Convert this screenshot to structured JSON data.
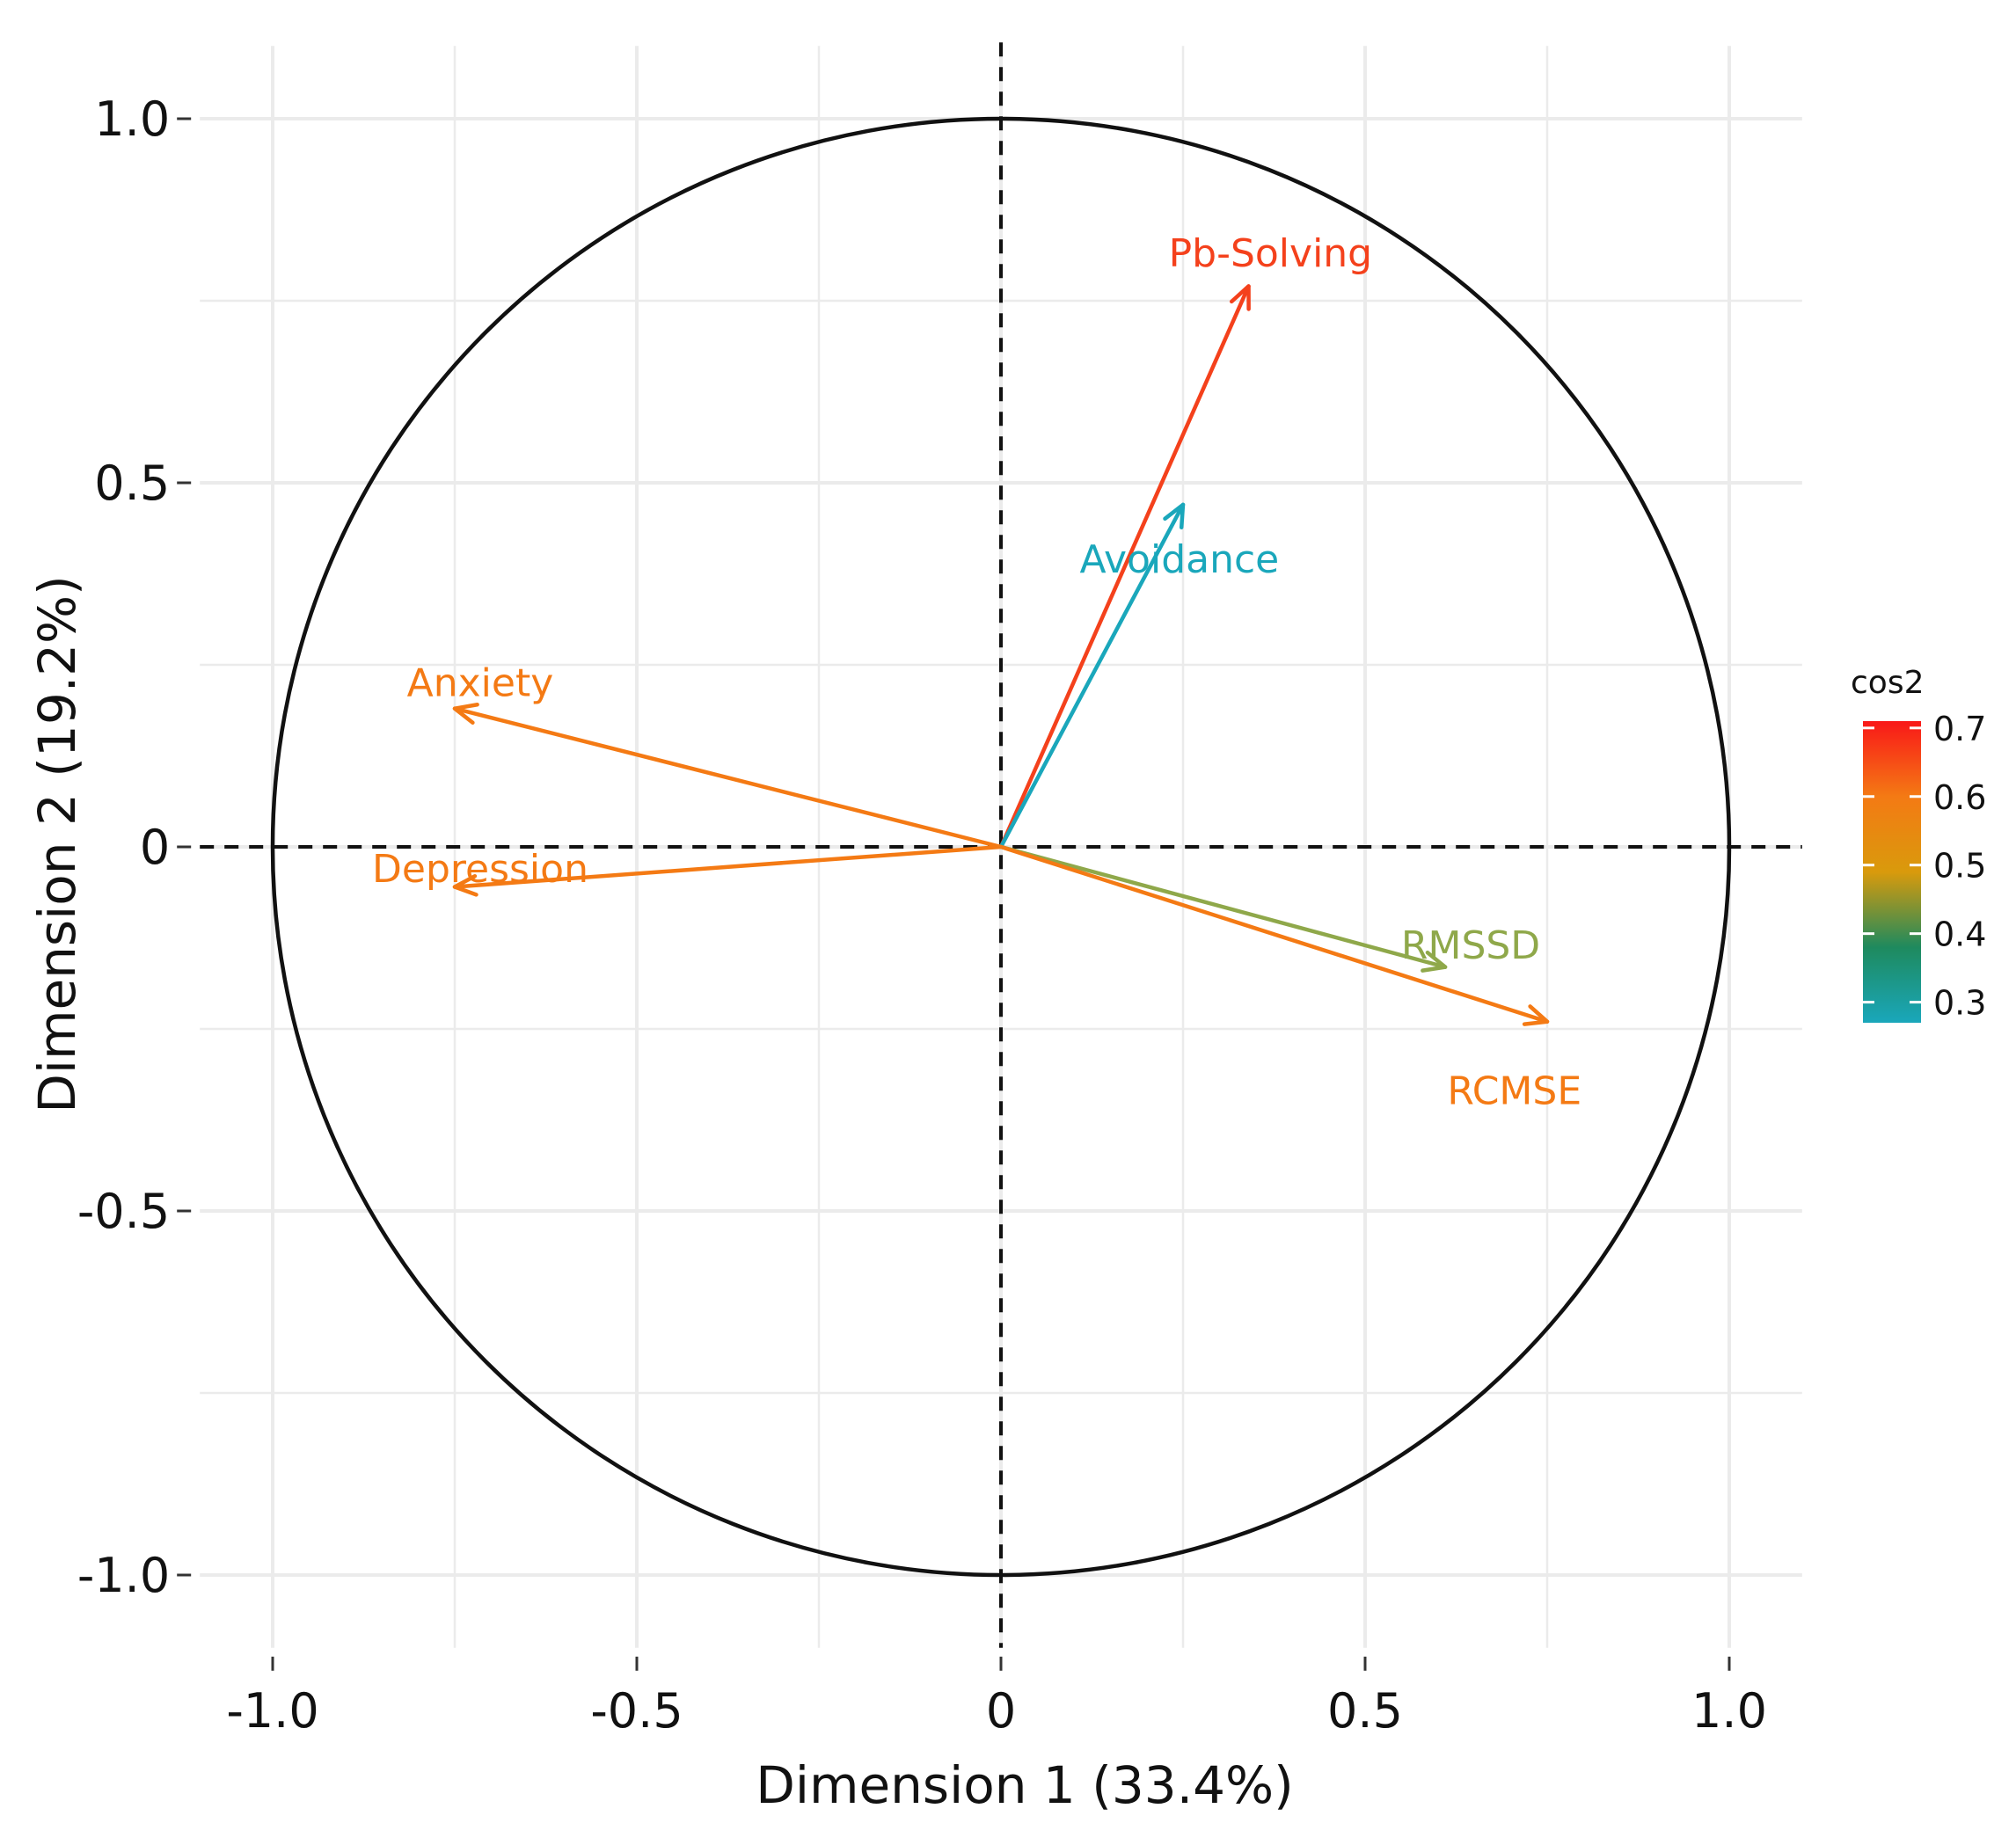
{
  "chart_data": {
    "type": "pca-correlation-circle",
    "xlabel": "Dimension 1 (33.4%)",
    "ylabel": "Dimension 2 (19.2%)",
    "xlim": [
      -1.1,
      1.1
    ],
    "ylim": [
      -1.1,
      1.1
    ],
    "x_ticks": [
      {
        "value": -1.0,
        "label": "-1.0"
      },
      {
        "value": -0.5,
        "label": "-0.5"
      },
      {
        "value": 0,
        "label": "0"
      },
      {
        "value": 0.5,
        "label": "0.5"
      },
      {
        "value": 1.0,
        "label": "1.0"
      }
    ],
    "y_ticks": [
      {
        "value": 1.0,
        "label": "1.0"
      },
      {
        "value": 0.5,
        "label": "0.5"
      },
      {
        "value": 0,
        "label": "0"
      },
      {
        "value": -0.5,
        "label": "-0.5"
      },
      {
        "value": -1.0,
        "label": "-1.0"
      }
    ],
    "grid": true,
    "unit_circle": true,
    "variables": [
      {
        "name": "Pb-Solving",
        "x": 0.34,
        "y": 0.77,
        "cos2": 0.7,
        "color": "#f4411c",
        "label_x": 0.37,
        "label_y": 0.815,
        "anchor": "middle"
      },
      {
        "name": "Avoidance",
        "x": 0.25,
        "y": 0.47,
        "cos2": 0.28,
        "color": "#1aa7bb",
        "label_x": 0.245,
        "label_y": 0.395,
        "anchor": "middle"
      },
      {
        "name": "Anxiety",
        "x": -0.75,
        "y": 0.19,
        "cos2": 0.6,
        "color": "#f47a14",
        "label_x": -0.715,
        "label_y": 0.225,
        "anchor": "middle"
      },
      {
        "name": "Depression",
        "x": -0.75,
        "y": -0.055,
        "cos2": 0.56,
        "color": "#f47a14",
        "label_x": -0.715,
        "label_y": -0.03,
        "anchor": "middle"
      },
      {
        "name": "RMSSD",
        "x": 0.61,
        "y": -0.165,
        "cos2": 0.4,
        "color": "#8fa84a",
        "label_x": 0.645,
        "label_y": -0.135,
        "anchor": "middle"
      },
      {
        "name": "RCMSE",
        "x": 0.75,
        "y": -0.24,
        "cos2": 0.62,
        "color": "#f47a14",
        "label_x": 0.705,
        "label_y": -0.335,
        "anchor": "middle"
      }
    ],
    "legend": {
      "title": "cos2",
      "position": "right",
      "range": [
        0.27,
        0.71
      ],
      "ticks": [
        "0.7",
        "0.6",
        "0.5",
        "0.4",
        "0.3"
      ],
      "tick_values": [
        0.7,
        0.6,
        0.5,
        0.4,
        0.3
      ],
      "gradient": [
        "#1aa7bb",
        "#1e8a5e",
        "#d99a0c",
        "#f47a14",
        "#f91818"
      ]
    },
    "colors": {
      "grid": "#ebebeb",
      "circle": "#111111",
      "dashed": "#111111"
    }
  }
}
